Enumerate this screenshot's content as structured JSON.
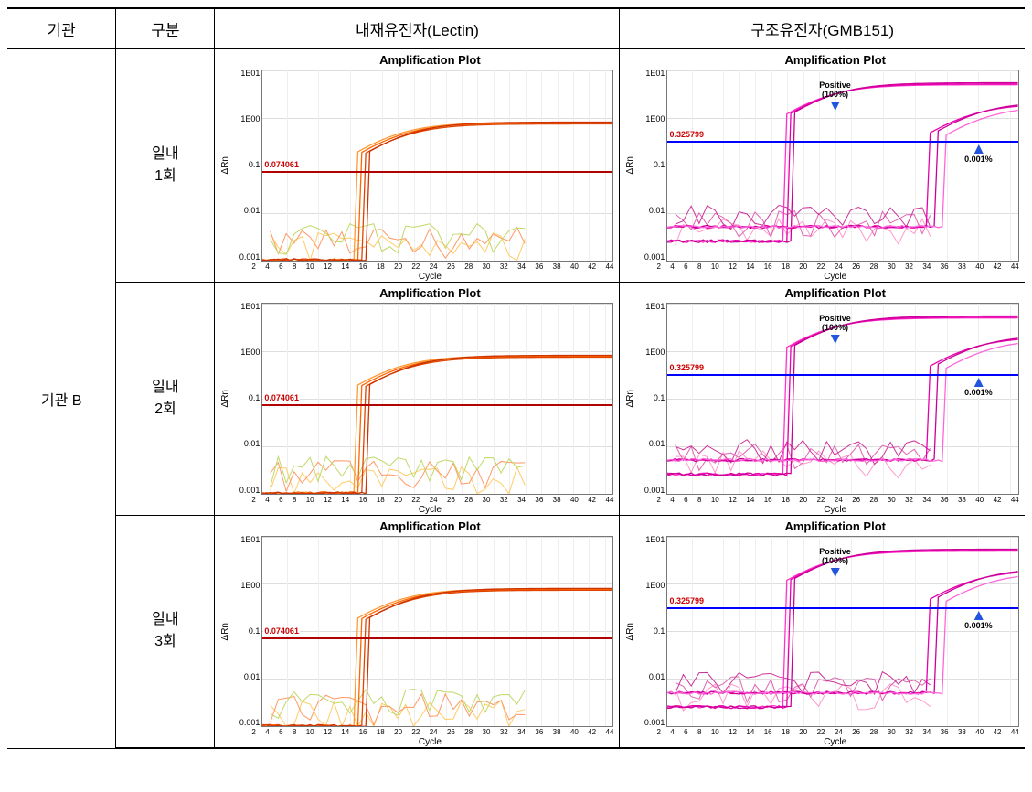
{
  "table": {
    "headers": [
      "기관",
      "구분",
      "내재유전자(Lectin)",
      "구조유전자(GMB151)"
    ],
    "institution": "기관 B",
    "rows": [
      {
        "label_line1": "일내",
        "label_line2": "1회"
      },
      {
        "label_line1": "일내",
        "label_line2": "2회"
      },
      {
        "label_line1": "일내",
        "label_line2": "3회"
      }
    ]
  },
  "chart_common": {
    "title": "Amplification Plot",
    "ylabel": "ΔRn",
    "xlabel": "Cycle",
    "x_ticks": [
      2,
      4,
      6,
      8,
      10,
      12,
      14,
      16,
      18,
      20,
      22,
      24,
      26,
      28,
      30,
      32,
      34,
      36,
      38,
      40,
      42,
      44
    ],
    "x_min": 1,
    "x_max": 45,
    "y_ticks_labels": [
      "1E01",
      "1E00",
      "0.1",
      "0.01",
      "0.001"
    ],
    "y_log_min": 0.001,
    "y_log_max": 10,
    "grid_color": "#dddddd",
    "border_color": "#777777",
    "title_fontsize": 13,
    "tick_fontsize": 9
  },
  "lectin_chart": {
    "threshold_value": 0.074061,
    "threshold_label": "0.074061",
    "threshold_color": "#b30000",
    "threshold_label_color": "#cc0000",
    "curve_colors": [
      "#ff9933",
      "#ff6600",
      "#e04400",
      "#cc3300"
    ],
    "noise_colors": [
      "#ffcc66",
      "#ff9966",
      "#bfd966"
    ],
    "curves": [
      {
        "ct": 17.0,
        "plateau": 0.8
      },
      {
        "ct": 17.5,
        "plateau": 0.78
      },
      {
        "ct": 18.0,
        "plateau": 0.75
      },
      {
        "ct": 18.5,
        "plateau": 0.82
      }
    ],
    "noise_level_low": 0.0012,
    "noise_level_high": 0.004
  },
  "gmb_chart": {
    "threshold_value": 0.325799,
    "threshold_label": "0.325799",
    "threshold_color": "#0000ff",
    "threshold_label_color": "#cc0000",
    "curve_colors": [
      "#ff33cc",
      "#e600ac",
      "#cc0099",
      "#ff66d9"
    ],
    "noise_colors": [
      "#ff99cc",
      "#e066b3",
      "#cc3399"
    ],
    "positive_label": "Positive\n(100%)",
    "lod_label": "0.001%",
    "arrow_color": "#2255dd",
    "curves_group1": [
      {
        "ct": 20.0,
        "plateau": 5.0
      },
      {
        "ct": 20.5,
        "plateau": 5.2
      },
      {
        "ct": 21.0,
        "plateau": 5.5
      }
    ],
    "curves_group2": [
      {
        "ct": 38.0,
        "plateau": 2.0
      },
      {
        "ct": 39.0,
        "plateau": 2.2
      },
      {
        "ct": 40.0,
        "plateau": 1.8
      }
    ],
    "noise_level_low": 0.003,
    "noise_level_high": 0.008
  }
}
